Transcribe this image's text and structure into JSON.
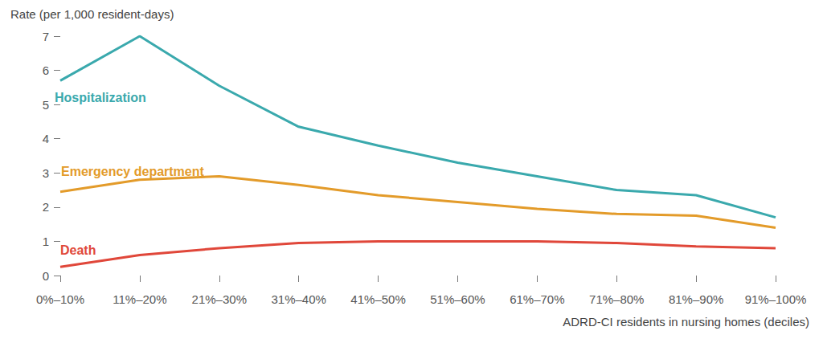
{
  "chart_data": {
    "type": "line",
    "y_label": "Rate (per 1,000 resident-days)",
    "x_label": "ADRD-CI residents in nursing homes (deciles)",
    "categories": [
      "0%–10%",
      "11%–20%",
      "21%–30%",
      "31%–40%",
      "41%–50%",
      "51%–60%",
      "61%–70%",
      "71%–80%",
      "81%–90%",
      "91%–100%"
    ],
    "series": [
      {
        "name": "Hospitalization",
        "color": "#3aa9ad",
        "values": [
          5.7,
          7.0,
          5.55,
          4.35,
          3.8,
          3.3,
          2.9,
          2.5,
          2.35,
          1.7
        ]
      },
      {
        "name": "Emergency department",
        "color": "#e39b2a",
        "values": [
          2.45,
          2.8,
          2.9,
          2.65,
          2.35,
          2.15,
          1.95,
          1.8,
          1.75,
          1.4
        ]
      },
      {
        "name": "Death",
        "color": "#e0473a",
        "values": [
          0.25,
          0.6,
          0.8,
          0.95,
          1.0,
          1.0,
          1.0,
          0.95,
          0.85,
          0.8
        ]
      }
    ],
    "ylim": [
      0,
      7
    ],
    "yticks": [
      0,
      1,
      2,
      3,
      4,
      5,
      6,
      7
    ],
    "grid": false
  }
}
